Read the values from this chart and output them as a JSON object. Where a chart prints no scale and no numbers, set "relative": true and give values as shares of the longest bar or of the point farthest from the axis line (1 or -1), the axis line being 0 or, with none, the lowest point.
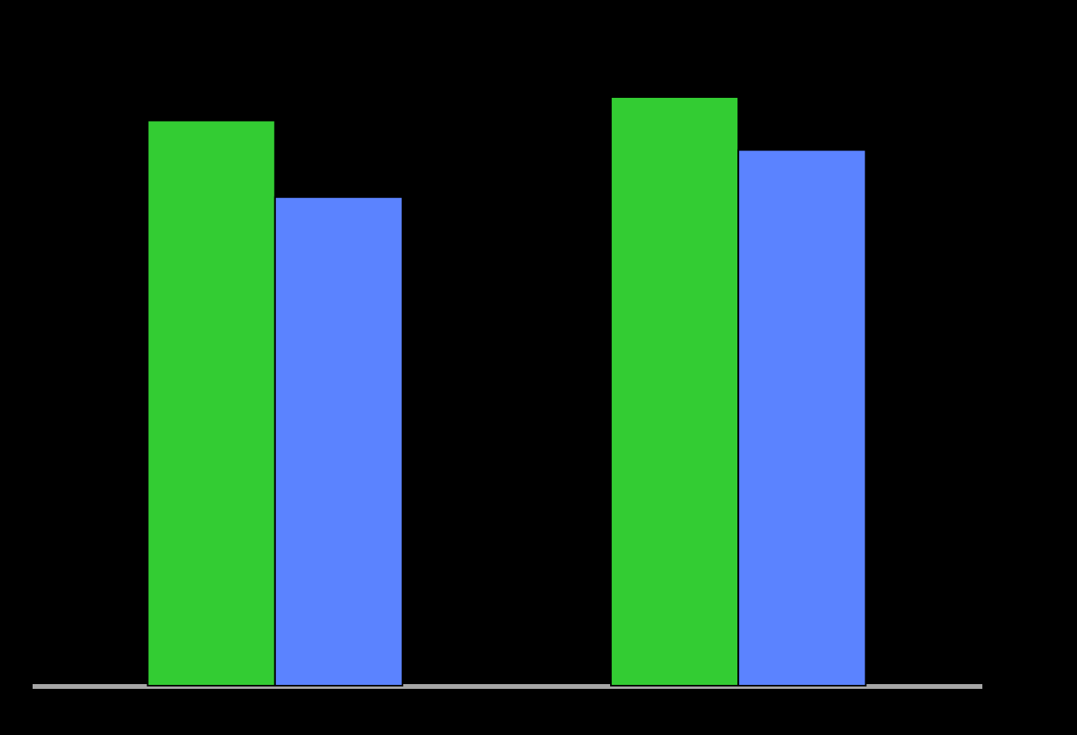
{
  "chart_data": {
    "type": "bar",
    "relative": true,
    "categories": [
      null,
      null
    ],
    "series": [
      {
        "color": "#33cc33",
        "values": [
          0.96,
          1.0
        ]
      },
      {
        "color": "#5b83ff",
        "values": [
          0.83,
          0.91
        ]
      }
    ],
    "tick_labels": false,
    "legend": false
  }
}
